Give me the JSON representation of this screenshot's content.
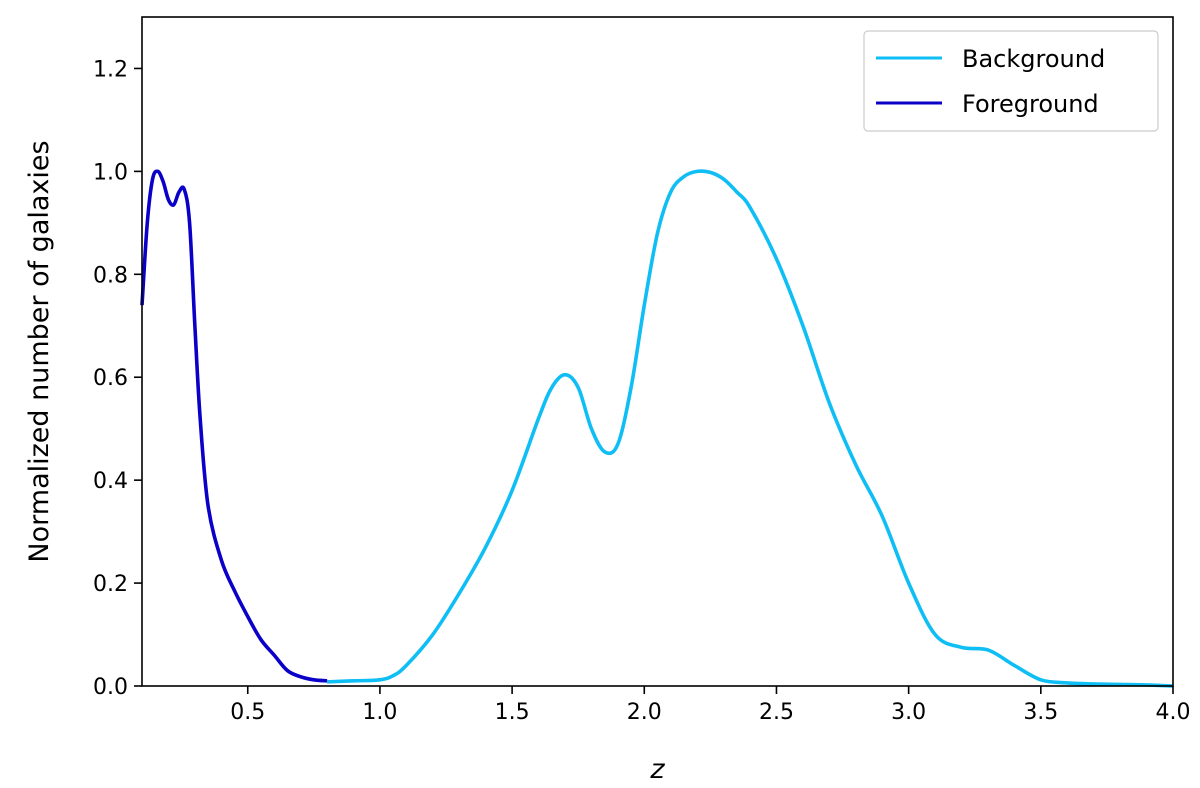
{
  "chart_data": {
    "type": "line",
    "xlabel": "z",
    "ylabel": "Normalized number of galaxies",
    "xlim": [
      0.1,
      4.0
    ],
    "ylim": [
      0.0,
      1.3
    ],
    "xticks": [
      0.5,
      1.0,
      1.5,
      2.0,
      2.5,
      3.0,
      3.5,
      4.0
    ],
    "xtick_labels": [
      "0.5",
      "1.0",
      "1.5",
      "2.0",
      "2.5",
      "3.0",
      "3.5",
      "4.0"
    ],
    "yticks": [
      0.0,
      0.2,
      0.4,
      0.6,
      0.8,
      1.0,
      1.2
    ],
    "ytick_labels": [
      "0.0",
      "0.2",
      "0.4",
      "0.6",
      "0.8",
      "1.0",
      "1.2"
    ],
    "grid": false,
    "legend_position": "top-right",
    "series": [
      {
        "name": "Background",
        "color": "#0FBEF5",
        "x": [
          0.8,
          0.9,
          1.0,
          1.05,
          1.1,
          1.2,
          1.3,
          1.4,
          1.5,
          1.6,
          1.65,
          1.7,
          1.75,
          1.8,
          1.85,
          1.9,
          1.95,
          2.0,
          2.05,
          2.1,
          2.15,
          2.2,
          2.25,
          2.3,
          2.35,
          2.4,
          2.5,
          2.6,
          2.7,
          2.8,
          2.9,
          3.0,
          3.1,
          3.2,
          3.3,
          3.4,
          3.5,
          3.6,
          3.7,
          3.8,
          3.9,
          4.0
        ],
        "y": [
          0.008,
          0.01,
          0.012,
          0.02,
          0.04,
          0.1,
          0.18,
          0.27,
          0.38,
          0.52,
          0.58,
          0.605,
          0.58,
          0.5,
          0.455,
          0.47,
          0.58,
          0.74,
          0.88,
          0.96,
          0.99,
          1.0,
          0.998,
          0.985,
          0.96,
          0.93,
          0.83,
          0.7,
          0.55,
          0.43,
          0.33,
          0.2,
          0.1,
          0.075,
          0.07,
          0.04,
          0.012,
          0.006,
          0.004,
          0.003,
          0.002,
          0.0
        ]
      },
      {
        "name": "Foreground",
        "color": "#0A00C8",
        "x": [
          0.1,
          0.12,
          0.14,
          0.16,
          0.18,
          0.2,
          0.22,
          0.24,
          0.26,
          0.28,
          0.3,
          0.32,
          0.35,
          0.4,
          0.45,
          0.5,
          0.55,
          0.6,
          0.65,
          0.7,
          0.75,
          0.8
        ],
        "y": [
          0.74,
          0.9,
          0.985,
          1.0,
          0.98,
          0.945,
          0.935,
          0.96,
          0.965,
          0.9,
          0.7,
          0.52,
          0.35,
          0.245,
          0.185,
          0.135,
          0.09,
          0.06,
          0.03,
          0.018,
          0.012,
          0.01
        ]
      }
    ]
  }
}
